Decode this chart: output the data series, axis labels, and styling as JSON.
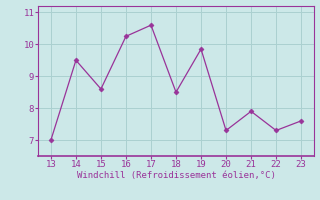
{
  "x": [
    13,
    14,
    15,
    16,
    17,
    18,
    19,
    20,
    21,
    22,
    23
  ],
  "y": [
    7.0,
    9.5,
    8.6,
    10.25,
    10.6,
    8.5,
    9.85,
    7.3,
    7.9,
    7.3,
    7.6
  ],
  "line_color": "#993399",
  "marker": "D",
  "marker_size": 2.5,
  "bg_color": "#cce8e8",
  "grid_color": "#aad0d0",
  "xlabel": "Windchill (Refroidissement éolien,°C)",
  "xlabel_color": "#993399",
  "tick_color": "#993399",
  "spine_color": "#993399",
  "xlim": [
    12.5,
    23.5
  ],
  "ylim": [
    6.5,
    11.2
  ],
  "yticks": [
    7,
    8,
    9,
    10,
    11
  ],
  "xticks": [
    13,
    14,
    15,
    16,
    17,
    18,
    19,
    20,
    21,
    22,
    23
  ]
}
